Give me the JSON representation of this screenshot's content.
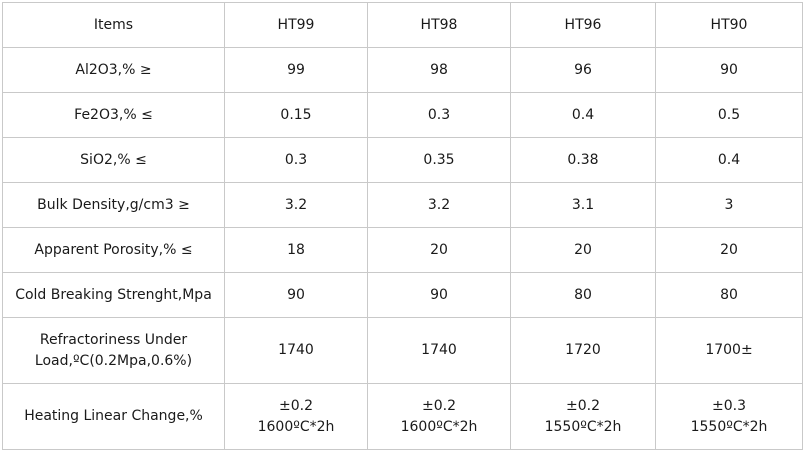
{
  "table": {
    "header": {
      "label": "Items",
      "grades": [
        "HT99",
        "HT98",
        "HT96",
        "HT90"
      ]
    },
    "rows": [
      {
        "label": "Al2O3,% ≥",
        "values": [
          "99",
          "98",
          "96",
          "90"
        ]
      },
      {
        "label": "Fe2O3,% ≤",
        "values": [
          "0.15",
          "0.3",
          "0.4",
          "0.5"
        ]
      },
      {
        "label": "SiO2,% ≤",
        "values": [
          "0.3",
          "0.35",
          "0.38",
          "0.4"
        ]
      },
      {
        "label": "Bulk Density,g/cm3 ≥",
        "values": [
          "3.2",
          "3.2",
          "3.1",
          "3"
        ]
      },
      {
        "label": "Apparent Porosity,% ≤",
        "values": [
          "18",
          "20",
          "20",
          "20"
        ]
      },
      {
        "label": "Cold Breaking Strenght,Mpa",
        "values": [
          "90",
          "90",
          "80",
          "80"
        ]
      },
      {
        "label_lines": [
          "Refractoriness Under",
          "Load,ºC(0.2Mpa,0.6%)"
        ],
        "values": [
          "1740",
          "1740",
          "1720",
          "1700±"
        ]
      },
      {
        "label": "Heating Linear Change,%",
        "values": [
          [
            "±0.2",
            "1600ºC*2h"
          ],
          [
            "±0.2",
            "1600ºC*2h"
          ],
          [
            "±0.2",
            "1550ºC*2h"
          ],
          [
            "±0.3",
            "1550ºC*2h"
          ]
        ]
      }
    ]
  }
}
